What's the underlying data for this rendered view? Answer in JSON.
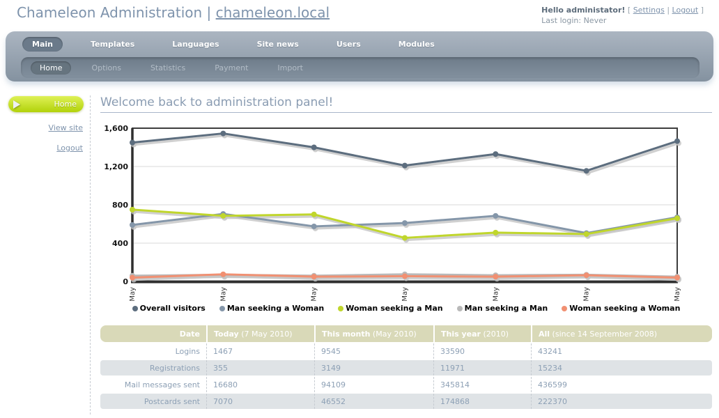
{
  "header": {
    "title_prefix": "Chameleon Administration | ",
    "domain_link": "chameleon.local",
    "greeting": "Hello administator!",
    "bracket_left": "[",
    "settings_label": "Settings",
    "link_separator": "|",
    "logout_label": "Logout",
    "bracket_right": "]",
    "last_login": "Last login: Never"
  },
  "main_nav": {
    "items": [
      {
        "label": "Main",
        "active": true
      },
      {
        "label": "Templates",
        "active": false
      },
      {
        "label": "Languages",
        "active": false
      },
      {
        "label": "Site news",
        "active": false
      },
      {
        "label": "Users",
        "active": false
      },
      {
        "label": "Modules",
        "active": false
      }
    ]
  },
  "sub_nav": {
    "items": [
      {
        "label": "Home",
        "active": true
      },
      {
        "label": "Options",
        "active": false
      },
      {
        "label": "Statistics",
        "active": false
      },
      {
        "label": "Payment",
        "active": false
      },
      {
        "label": "Import",
        "active": false
      }
    ]
  },
  "sidebar": {
    "home_button_label": "Home",
    "links": [
      {
        "label": "View site"
      },
      {
        "label": "Logout"
      }
    ]
  },
  "page": {
    "heading": "Welcome back to administration panel!"
  },
  "theme": {
    "accent_green": "#bdd60e",
    "nav_gray": "#8492a0",
    "table_header_tan": "#d9d9b8",
    "text_blue_gray": "#7e93ac"
  },
  "chart_data": {
    "type": "line",
    "x": [
      "1 May",
      "2 May",
      "3 May",
      "4 May",
      "5 May",
      "6 May",
      "7 May"
    ],
    "series": [
      {
        "name": "Overall visitors",
        "color": "#5c6d7e",
        "values": [
          1450,
          1545,
          1400,
          1210,
          1330,
          1155,
          1465
        ]
      },
      {
        "name": "Man seeking a Woman",
        "color": "#8496a9",
        "values": [
          590,
          705,
          575,
          610,
          685,
          505,
          670
        ]
      },
      {
        "name": "Woman seeking a Man",
        "color": "#c0d62c",
        "values": [
          750,
          685,
          700,
          455,
          510,
          495,
          660
        ]
      },
      {
        "name": "Man seeking a Man",
        "color": "#b9b9b9",
        "values": [
          60,
          70,
          60,
          75,
          65,
          70,
          50
        ]
      },
      {
        "name": "Woman seeking a Woman",
        "color": "#f19072",
        "values": [
          40,
          75,
          50,
          55,
          50,
          65,
          40
        ]
      }
    ],
    "ylim": [
      0,
      1600
    ],
    "yticks": [
      0,
      400,
      800,
      1200,
      1600
    ],
    "ytick_labels": [
      "0",
      "400",
      "800",
      "1,200",
      "1,600"
    ],
    "grid": true,
    "legend_position": "bottom",
    "title": "",
    "xlabel": "",
    "ylabel": ""
  },
  "stats_table": {
    "headers": [
      {
        "bold": "Date",
        "rest": ""
      },
      {
        "bold": "Today",
        "rest": " (7 May 2010)"
      },
      {
        "bold": "This month",
        "rest": " (May 2010)"
      },
      {
        "bold": "This year",
        "rest": " (2010)"
      },
      {
        "bold": "All",
        "rest": " (since 14 September 2008)"
      }
    ],
    "rows": [
      {
        "label": "Logins",
        "values": [
          "1467",
          "9545",
          "33590",
          "43241"
        ]
      },
      {
        "label": "Registrations",
        "values": [
          "355",
          "3149",
          "11971",
          "15234"
        ]
      },
      {
        "label": "Mail messages sent",
        "values": [
          "16680",
          "94109",
          "345814",
          "436599"
        ]
      },
      {
        "label": "Postcards sent",
        "values": [
          "7070",
          "46552",
          "174868",
          "222370"
        ]
      }
    ]
  }
}
